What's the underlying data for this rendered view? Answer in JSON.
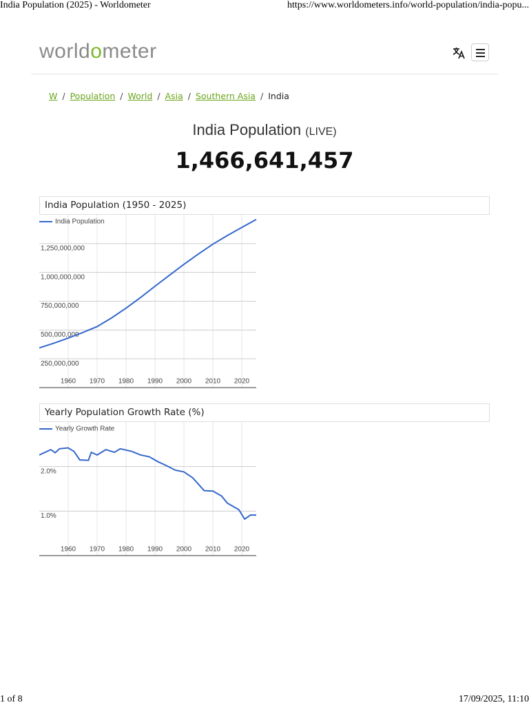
{
  "browser": {
    "title": "India Population (2025) - Worldometer",
    "url": "https://www.worldometers.info/world-population/india-popu...",
    "page": "1 of 8",
    "datetime": "17/09/2025, 11:10"
  },
  "header": {
    "logo": [
      "world",
      "o",
      "meter"
    ]
  },
  "breadcrumb": [
    "W",
    "Population",
    "World",
    "Asia",
    "Southern Asia",
    "India"
  ],
  "headline": {
    "title": "India Population",
    "tag": "(LIVE)",
    "count": "1,466,641,457"
  },
  "chart_data": [
    {
      "type": "line",
      "title": "India Population (1950 - 2025)",
      "x": [
        1950,
        1955,
        1960,
        1965,
        1970,
        1975,
        1980,
        1985,
        1990,
        1995,
        2000,
        2005,
        2010,
        2015,
        2020,
        2025
      ],
      "series": [
        {
          "name": "India Population",
          "color": "#3366cc",
          "values": [
            345000000,
            385000000,
            430000000,
            478000000,
            530000000,
            605000000,
            690000000,
            782000000,
            880000000,
            975000000,
            1070000000,
            1160000000,
            1245000000,
            1320000000,
            1390000000,
            1460000000
          ]
        }
      ],
      "xlim": [
        1950,
        2025
      ],
      "xticks": [
        1960,
        1970,
        1980,
        1990,
        2000,
        2010,
        2020
      ],
      "ylim": [
        0,
        1500000000
      ],
      "yticks": [
        {
          "value": 250000000,
          "label": "250,000,000"
        },
        {
          "value": 500000000,
          "label": "500,000,000"
        },
        {
          "value": 750000000,
          "label": "750,000,000"
        },
        {
          "value": 1000000000,
          "label": "1,000,000,000"
        },
        {
          "value": 1250000000,
          "label": "1,250,000,000"
        }
      ],
      "grid": true,
      "legend": "top-left"
    },
    {
      "type": "line",
      "title": "Yearly Population Growth Rate (%)",
      "x": [
        1950,
        1954,
        1955.5,
        1957,
        1960,
        1962,
        1964,
        1967,
        1968,
        1970,
        1973,
        1976,
        1978,
        1982,
        1985,
        1988,
        1991,
        1994,
        1997,
        2000,
        2003,
        2007,
        2010,
        2013,
        2015,
        2019,
        2021,
        2023,
        2025
      ],
      "series": [
        {
          "name": "Yearly Growth Rate",
          "color": "#3366cc",
          "values": [
            2.26,
            2.38,
            2.31,
            2.4,
            2.42,
            2.34,
            2.15,
            2.14,
            2.32,
            2.26,
            2.38,
            2.32,
            2.4,
            2.34,
            2.26,
            2.22,
            2.11,
            2.02,
            1.92,
            1.88,
            1.75,
            1.46,
            1.45,
            1.34,
            1.18,
            1.03,
            0.82,
            0.91,
            0.91
          ]
        }
      ],
      "xlim": [
        1950,
        2025
      ],
      "xticks": [
        1960,
        1970,
        1980,
        1990,
        2000,
        2010,
        2020
      ],
      "ylim": [
        0,
        3
      ],
      "yticks": [
        {
          "value": 1,
          "label": "1.0%"
        },
        {
          "value": 2,
          "label": "2.0%"
        }
      ],
      "grid": true,
      "legend": "top-left"
    }
  ]
}
